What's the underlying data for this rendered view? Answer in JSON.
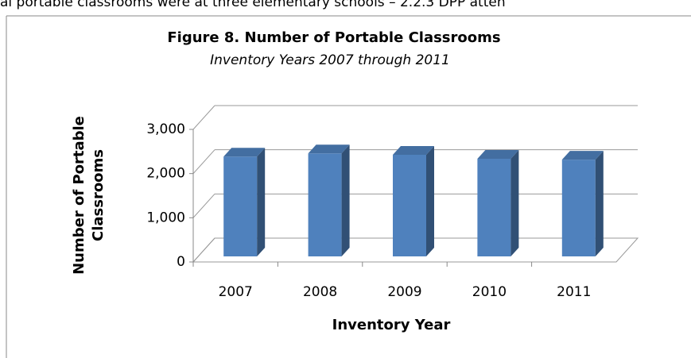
{
  "header": {
    "text": "al portable classrooms were at three elementary schools – 2.2.3 DPP atten"
  },
  "chart_data": {
    "type": "bar3d",
    "title": "Figure 8.  Number of Portable Classrooms",
    "subtitle": "Inventory Years 2007 through 2011",
    "categories": [
      "2007",
      "2008",
      "2009",
      "2010",
      "2011"
    ],
    "values": [
      2260,
      2330,
      2300,
      2210,
      2190
    ],
    "color": "#4f81bd",
    "ylim": [
      0,
      3000
    ],
    "yticks": [
      0,
      {
        "value": 1000,
        "label": "1,000"
      },
      {
        "value": 2000,
        "label": "2,000"
      },
      {
        "value": 3000,
        "label": "3,000"
      }
    ],
    "ylabel": [
      "Number of Portable",
      "Classrooms"
    ],
    "xlabel": "Inventory Year",
    "grid": true
  }
}
